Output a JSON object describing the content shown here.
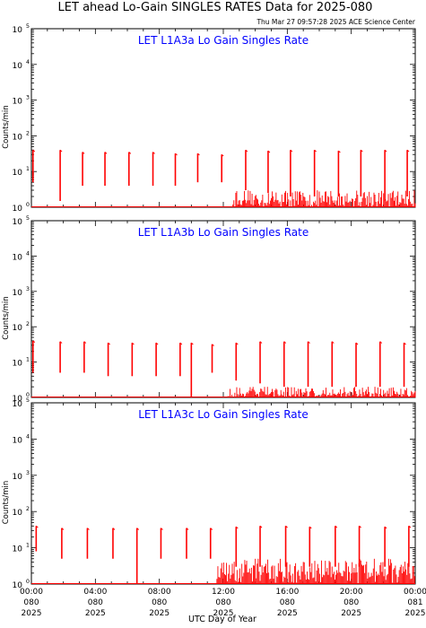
{
  "page": {
    "title": "LET ahead Lo-Gain SINGLES RATES Data for 2025-080",
    "timestamp": "Thu Mar 27 09:57:28 2025 ACE Science Center",
    "xlabel": "UTC Day of Year"
  },
  "colors": {
    "axis": "#000000",
    "data": "#ff0000",
    "panel_title": "#0000ff"
  },
  "chart_data": [
    {
      "type": "line",
      "title": "LET L1A3a Lo Gain Singles Rate",
      "ylabel": "Counts/min",
      "yscale": "log",
      "ylim": [
        1,
        100000
      ],
      "y_ticks": [
        1,
        10,
        100,
        1000,
        10000,
        100000
      ],
      "y_tick_exponents": [
        "0",
        "1",
        "2",
        "3",
        "4",
        "5"
      ],
      "xlim": [
        0,
        24
      ],
      "x_ticks": [
        0,
        4,
        8,
        12,
        16,
        20,
        24
      ],
      "x_tick_labels": [
        [
          "00:00",
          "080",
          "2025"
        ],
        [
          "04:00",
          "080",
          "2025"
        ],
        [
          "08:00",
          "080",
          "2025"
        ],
        [
          "12:00",
          "080",
          "2025"
        ],
        [
          "16:00",
          "080",
          "2025"
        ],
        [
          "20:00",
          "080",
          "2025"
        ],
        [
          "00:00",
          "081",
          "2025"
        ]
      ],
      "series": [
        {
          "spikes_hr": [
            0.1,
            1.8,
            3.2,
            4.6,
            6.1,
            7.6,
            9.0,
            10.4,
            11.9,
            13.4,
            14.8,
            16.2,
            17.7,
            19.2,
            20.6,
            22.1,
            23.5
          ],
          "spike_peaks": [
            40,
            40,
            35,
            35,
            35,
            35,
            32,
            32,
            30,
            40,
            38,
            40,
            40,
            38,
            40,
            40,
            40
          ],
          "spike_bottoms": [
            5,
            1.5,
            4,
            4,
            4,
            4,
            4,
            5,
            5,
            3,
            2.5,
            2,
            2,
            2,
            2,
            1.5,
            2
          ],
          "noise_start_hr": 12.6,
          "noise_max": 3
        }
      ]
    },
    {
      "type": "line",
      "title": "LET L1A3b Lo Gain Singles Rate",
      "ylabel": "Counts/min",
      "yscale": "log",
      "ylim": [
        1,
        100000
      ],
      "y_ticks": [
        1,
        10,
        100,
        1000,
        10000,
        100000
      ],
      "y_tick_exponents": [
        "0",
        "1",
        "2",
        "3",
        "4",
        "5"
      ],
      "xlim": [
        0,
        24
      ],
      "x_ticks": [
        0,
        4,
        8,
        12,
        16,
        20,
        24
      ],
      "x_tick_labels": [
        [
          "00:00",
          "080",
          "2025"
        ],
        [
          "04:00",
          "080",
          "2025"
        ],
        [
          "08:00",
          "080",
          "2025"
        ],
        [
          "12:00",
          "080",
          "2025"
        ],
        [
          "16:00",
          "080",
          "2025"
        ],
        [
          "20:00",
          "080",
          "2025"
        ],
        [
          "00:00",
          "081",
          "2025"
        ]
      ],
      "series": [
        {
          "spikes_hr": [
            0.1,
            1.8,
            3.3,
            4.8,
            6.3,
            7.8,
            9.3,
            10.0,
            11.3,
            12.8,
            14.3,
            15.8,
            17.3,
            18.8,
            20.3,
            21.8,
            23.3
          ],
          "spike_peaks": [
            40,
            38,
            38,
            35,
            35,
            35,
            35,
            35,
            32,
            35,
            38,
            38,
            38,
            38,
            35,
            38,
            35
          ],
          "spike_bottoms": [
            5,
            5,
            5,
            4,
            4,
            4,
            4,
            1,
            5,
            3,
            2.5,
            2,
            2,
            2,
            2,
            2,
            2
          ],
          "noise_start_hr": 12.3,
          "noise_max": 2
        }
      ]
    },
    {
      "type": "line",
      "title": "LET L1A3c Lo Gain Singles Rate",
      "ylabel": "Counts/min",
      "yscale": "log",
      "ylim": [
        1,
        100000
      ],
      "y_ticks": [
        1,
        10,
        100,
        1000,
        10000,
        100000
      ],
      "y_tick_exponents": [
        "0",
        "1",
        "2",
        "3",
        "4",
        "5"
      ],
      "xlim": [
        0,
        24
      ],
      "x_ticks": [
        0,
        4,
        8,
        12,
        16,
        20,
        24
      ],
      "x_tick_labels": [
        [
          "00:00",
          "080",
          "2025"
        ],
        [
          "04:00",
          "080",
          "2025"
        ],
        [
          "08:00",
          "080",
          "2025"
        ],
        [
          "12:00",
          "080",
          "2025"
        ],
        [
          "16:00",
          "080",
          "2025"
        ],
        [
          "20:00",
          "080",
          "2025"
        ],
        [
          "00:00",
          "081",
          "2025"
        ]
      ],
      "series": [
        {
          "spikes_hr": [
            0.3,
            1.9,
            3.5,
            5.1,
            6.6,
            8.1,
            9.7,
            11.2,
            12.8,
            14.3,
            15.9,
            17.4,
            19.0,
            20.5,
            22.1,
            23.6
          ],
          "spike_peaks": [
            40,
            35,
            35,
            35,
            35,
            35,
            35,
            35,
            38,
            40,
            40,
            38,
            40,
            40,
            38,
            40
          ],
          "spike_bottoms": [
            8,
            5,
            5,
            5,
            1,
            5,
            5,
            5,
            3,
            3,
            3,
            3,
            3,
            3,
            3,
            3
          ],
          "noise_start_hr": 11.6,
          "noise_max": 5
        }
      ]
    }
  ]
}
